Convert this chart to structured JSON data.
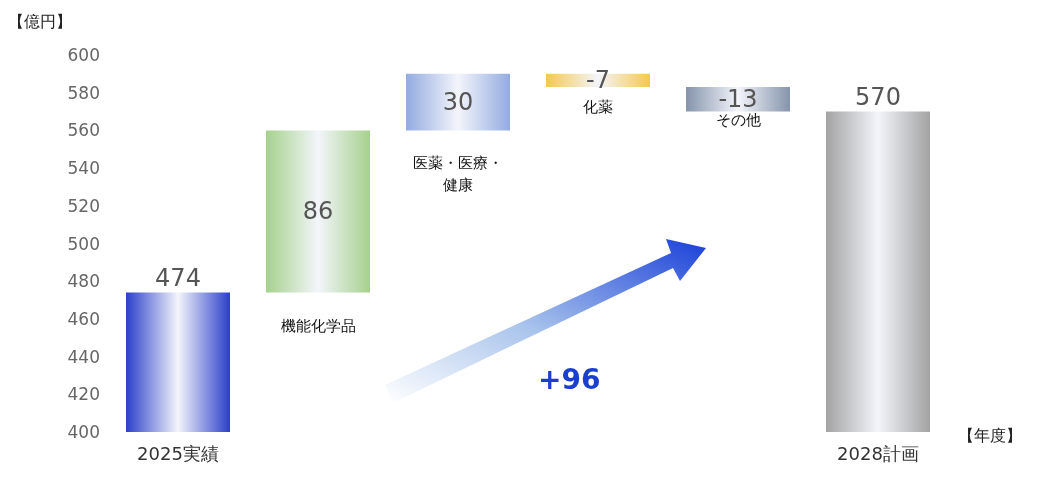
{
  "chart_data": {
    "type": "bar",
    "ylabel": "【億円】",
    "xlabel": "【年度】",
    "categories": [
      "2025実績",
      "機能化学品",
      "医薬・医療・健康",
      "化薬",
      "その他",
      "2028計画"
    ],
    "values": [
      474,
      86,
      30,
      -7,
      -13,
      570
    ],
    "base": [
      null,
      474,
      560,
      590,
      583,
      null
    ],
    "colors": [
      "#2b3fc9",
      "#a6d18c",
      "#93abe0",
      "#f6c84a",
      "#8594ab",
      "#a3a3a3"
    ],
    "ylim": [
      400,
      600
    ],
    "yticks": [
      400,
      420,
      440,
      460,
      480,
      500,
      520,
      540,
      560,
      580,
      600
    ],
    "data_labels": true,
    "annotations": [
      "+96"
    ]
  }
}
